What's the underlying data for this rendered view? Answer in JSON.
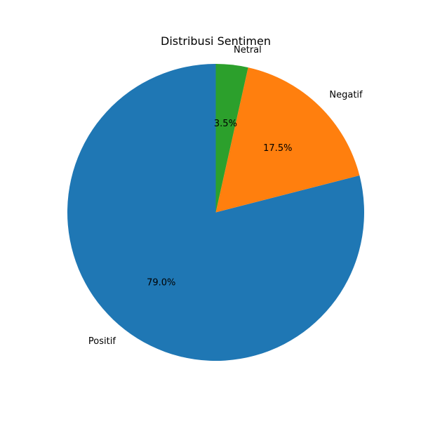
{
  "chart_data": {
    "type": "pie",
    "title": "Distribusi Sentimen",
    "start_angle": "top",
    "direction": "counterclockwise",
    "slices": [
      {
        "label": "Positif",
        "value": 79.0,
        "pct_label": "79.0%",
        "color": "#1f77b4"
      },
      {
        "label": "Negatif",
        "value": 17.5,
        "pct_label": "17.5%",
        "color": "#ff7f0e"
      },
      {
        "label": "Netral",
        "value": 3.5,
        "pct_label": "3.5%",
        "color": "#2ca02c"
      }
    ]
  }
}
